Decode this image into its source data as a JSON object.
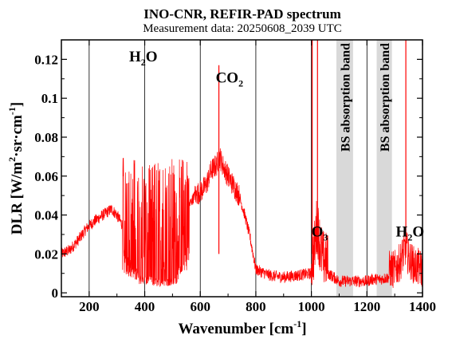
{
  "title": "INO-CNR, REFIR-PAD spectrum",
  "subtitle": "Measurement data: 20250608_2039 UTC",
  "chart_data": {
    "type": "line",
    "title": "INO-CNR, REFIR-PAD spectrum",
    "subtitle": "Measurement data: 20250608_2039 UTC",
    "xlabel": "Wavenumber [cm",
    "xlabel_sup": "-1",
    "xlabel_end": "]",
    "ylabel": "DLR [W/m",
    "ylabel_sup2": "2",
    "ylabel_mid": "·sr·cm",
    "ylabel_sup1": "-1",
    "ylabel_end": "]",
    "xlim": [
      100,
      1400
    ],
    "ylim": [
      -0.002,
      0.13
    ],
    "xticks": [
      200,
      400,
      600,
      800,
      1000,
      1200,
      1400
    ],
    "yticks": [
      0,
      0.02,
      0.04,
      0.06,
      0.08,
      0.1,
      0.12
    ],
    "ytick_labels": [
      "0",
      "0.02",
      "0.04",
      "0.06",
      "0.08",
      "0.1",
      "0.12"
    ],
    "line_color": "#ff0000",
    "band_color": "#d9d9d9",
    "series": [
      {
        "x": [
          100,
          130,
          160,
          190,
          220,
          250,
          280,
          300,
          330,
          350,
          380,
          400,
          420,
          450,
          480,
          500,
          530,
          560,
          580,
          600,
          620,
          640,
          660,
          670,
          680,
          700,
          720,
          740,
          760,
          780,
          800,
          850,
          900,
          950,
          1000,
          1010,
          1020,
          1030,
          1040,
          1060,
          1080,
          1100,
          1150,
          1200,
          1220,
          1250,
          1280,
          1300,
          1320,
          1330,
          1340,
          1350,
          1370,
          1400
        ],
        "y": [
          0.02,
          0.022,
          0.027,
          0.033,
          0.037,
          0.04,
          0.043,
          0.04,
          0.032,
          0.025,
          0.015,
          0.012,
          0.012,
          0.01,
          0.012,
          0.011,
          0.02,
          0.045,
          0.05,
          0.052,
          0.055,
          0.063,
          0.066,
          0.07,
          0.066,
          0.06,
          0.055,
          0.05,
          0.04,
          0.028,
          0.012,
          0.009,
          0.008,
          0.009,
          0.01,
          0.015,
          0.03,
          0.02,
          0.012,
          0.01,
          0.008,
          0.006,
          0.006,
          0.006,
          0.007,
          0.007,
          0.008,
          0.008,
          0.012,
          0.016,
          0.02,
          0.014,
          0.01,
          0.008
        ]
      }
    ],
    "spikes": [
      {
        "x": 667,
        "y": 0.117
      },
      {
        "x": 1003,
        "y": 0.13
      },
      {
        "x": 1022,
        "y": 0.13
      },
      {
        "x": 1340,
        "y": 0.13
      }
    ],
    "bands": [
      {
        "x0": 1090,
        "x1": 1150,
        "label": "BS absorption band"
      },
      {
        "x0": 1235,
        "x1": 1290,
        "label": "BS absorption band"
      }
    ],
    "annotations": [
      {
        "text": "H",
        "sub": "2",
        "end": "O",
        "x": 395,
        "y": 0.119
      },
      {
        "text": "CO",
        "sub": "2",
        "end": "",
        "x": 705,
        "y": 0.108
      },
      {
        "text": "O",
        "sub": "3",
        "end": "",
        "x": 1030,
        "y": 0.029
      },
      {
        "text": "H",
        "sub": "2",
        "end": "O",
        "x": 1355,
        "y": 0.029
      }
    ]
  }
}
